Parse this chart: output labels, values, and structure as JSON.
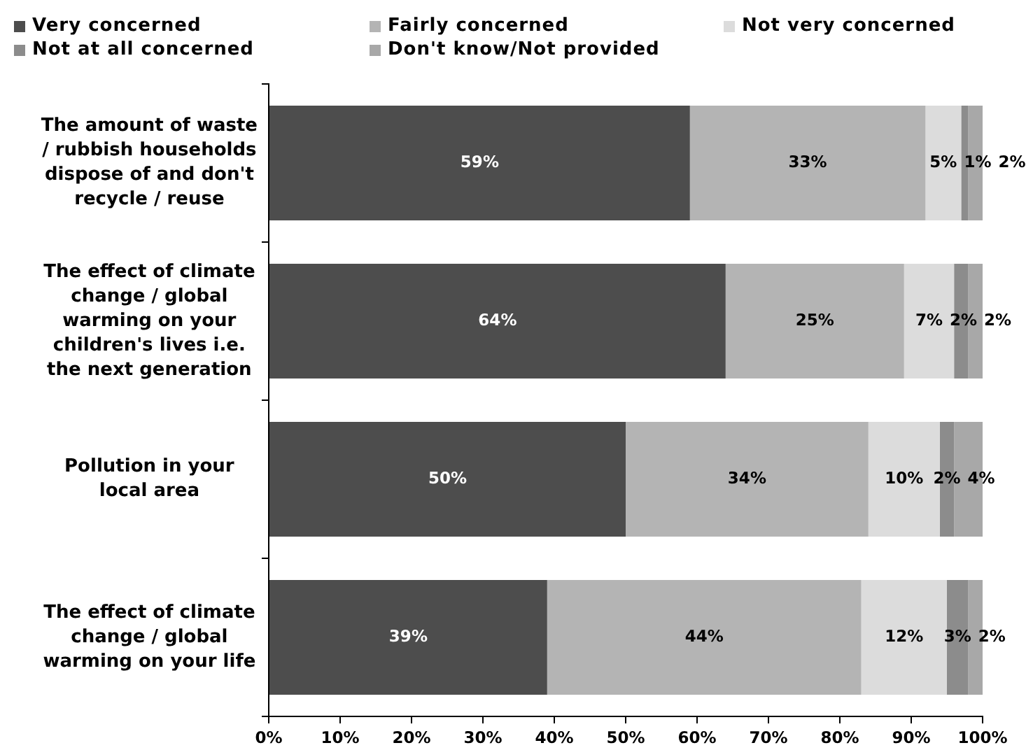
{
  "chart_data": {
    "type": "bar",
    "orientation": "horizontal",
    "stacked": true,
    "categories": [
      "The amount of waste / rubbish households dispose of and don't recycle / reuse",
      "The effect of climate change / global warming on your children's lives i.e. the next generation",
      "Pollution in your local area",
      "The effect of climate change / global warming on your life"
    ],
    "series": [
      {
        "name": "Very concerned",
        "color": "#4d4d4d",
        "values": [
          59,
          64,
          50,
          39
        ],
        "value_labels": [
          "59%",
          "64%",
          "50%",
          "39%"
        ]
      },
      {
        "name": "Fairly concerned",
        "color": "#b4b4b4",
        "values": [
          33,
          25,
          34,
          44
        ],
        "value_labels": [
          "33%",
          "25%",
          "34%",
          "44%"
        ]
      },
      {
        "name": "Not very concerned",
        "color": "#dcdcdc",
        "values": [
          5,
          7,
          10,
          12
        ],
        "value_labels": [
          "5%",
          "7%",
          "10%",
          "12%"
        ]
      },
      {
        "name": "Not at all concerned",
        "color": "#8c8c8c",
        "values": [
          1,
          2,
          2,
          3
        ],
        "value_labels": [
          "1%",
          "2%",
          "2%",
          "3%"
        ]
      },
      {
        "name": "Don't know/Not provided",
        "color": "#a8a8a8",
        "values": [
          2,
          2,
          4,
          2
        ],
        "value_labels": [
          "2%",
          "2%",
          "4%",
          "2%"
        ]
      }
    ],
    "xlim": [
      0,
      100
    ],
    "xticks": [
      {
        "value": 0,
        "label": "0%"
      },
      {
        "value": 10,
        "label": "10%"
      },
      {
        "value": 20,
        "label": "20%"
      },
      {
        "value": 30,
        "label": "30%"
      },
      {
        "value": 40,
        "label": "40%"
      },
      {
        "value": 50,
        "label": "50%"
      },
      {
        "value": 60,
        "label": "60%"
      },
      {
        "value": 70,
        "label": "70%"
      },
      {
        "value": 80,
        "label": "80%"
      },
      {
        "value": 90,
        "label": "90%"
      },
      {
        "value": 100,
        "label": "100%"
      }
    ],
    "legend": "top",
    "grid": false
  }
}
